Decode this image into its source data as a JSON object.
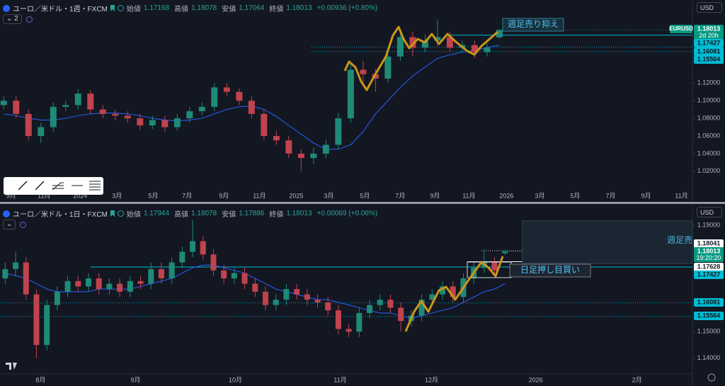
{
  "chart_data": [
    {
      "type": "candlestick",
      "title": "ユーロ／米ドル・1週・FXCM",
      "ohlc": [
        {
          "label": "始値",
          "value": 1.17168
        },
        {
          "label": "高値",
          "value": 1.18078
        },
        {
          "label": "安値",
          "value": 1.17064
        },
        {
          "label": "終値",
          "value": 1.18013
        }
      ],
      "change": "+0.00936 (+0.80%)",
      "indicator_count": 2,
      "currency": "USD",
      "symbol_tag": "EURUSD",
      "annotations": [
        "週足売り抑え"
      ],
      "up_color": "#1e8a78",
      "down_color": "#c0434d",
      "grid": false,
      "xlim": [
        -0.3,
        55.4
      ],
      "xticks": [
        {
          "value": 0.6,
          "label": "9月"
        },
        {
          "value": 3.26,
          "label": "11月"
        },
        {
          "value": 6.17,
          "label": "2024"
        },
        {
          "value": 9.14,
          "label": "3月"
        },
        {
          "value": 12.06,
          "label": "5月"
        },
        {
          "value": 14.8,
          "label": "7月"
        },
        {
          "value": 17.77,
          "label": "9月"
        },
        {
          "value": 20.63,
          "label": "11月"
        },
        {
          "value": 23.6,
          "label": "2025"
        },
        {
          "value": 26.23,
          "label": "3月"
        },
        {
          "value": 29.14,
          "label": "5月"
        },
        {
          "value": 32,
          "label": "7月"
        },
        {
          "value": 34.8,
          "label": "9月"
        },
        {
          "value": 37.54,
          "label": "11月"
        },
        {
          "value": 40.57,
          "label": "2026"
        },
        {
          "value": 43.26,
          "label": "3月"
        },
        {
          "value": 46.11,
          "label": "5月"
        },
        {
          "value": 48.97,
          "label": "7月"
        },
        {
          "value": 51.83,
          "label": "9月"
        },
        {
          "value": 54.69,
          "label": "11月"
        }
      ],
      "ylim": [
        0.999,
        1.198
      ],
      "yticks": [
        {
          "value": 1.12,
          "label": "1.12000"
        },
        {
          "value": 1.1,
          "label": "1.10000"
        },
        {
          "value": 1.08,
          "label": "1.08000"
        },
        {
          "value": 1.06,
          "label": "1.06000"
        },
        {
          "value": 1.04,
          "label": "1.04000"
        },
        {
          "value": 1.02,
          "label": "1.02000"
        }
      ],
      "candles": [
        [
          1.095,
          1.105,
          1.09,
          1.1
        ],
        [
          1.1,
          1.105,
          1.08,
          1.085
        ],
        [
          1.085,
          1.09,
          1.055,
          1.06
        ],
        [
          1.06,
          1.075,
          1.052,
          1.07
        ],
        [
          1.07,
          1.098,
          1.065,
          1.093
        ],
        [
          1.093,
          1.1,
          1.088,
          1.095
        ],
        [
          1.095,
          1.113,
          1.09,
          1.108
        ],
        [
          1.108,
          1.112,
          1.085,
          1.09
        ],
        [
          1.09,
          1.095,
          1.08,
          1.085
        ],
        [
          1.085,
          1.09,
          1.078,
          1.083
        ],
        [
          1.083,
          1.088,
          1.075,
          1.08
        ],
        [
          1.08,
          1.085,
          1.067,
          1.072
        ],
        [
          1.072,
          1.083,
          1.068,
          1.078
        ],
        [
          1.078,
          1.083,
          1.065,
          1.07
        ],
        [
          1.07,
          1.085,
          1.066,
          1.08
        ],
        [
          1.08,
          1.093,
          1.075,
          1.088
        ],
        [
          1.088,
          1.098,
          1.083,
          1.093
        ],
        [
          1.093,
          1.12,
          1.088,
          1.115
        ],
        [
          1.115,
          1.12,
          1.105,
          1.11
        ],
        [
          1.11,
          1.114,
          1.095,
          1.1
        ],
        [
          1.1,
          1.105,
          1.08,
          1.085
        ],
        [
          1.085,
          1.09,
          1.055,
          1.06
        ],
        [
          1.06,
          1.066,
          1.05,
          1.055
        ],
        [
          1.055,
          1.06,
          1.035,
          1.04
        ],
        [
          1.04,
          1.045,
          1.02,
          1.035
        ],
        [
          1.035,
          1.047,
          1.028,
          1.04
        ],
        [
          1.04,
          1.056,
          1.035,
          1.05
        ],
        [
          1.05,
          1.086,
          1.045,
          1.08
        ],
        [
          1.08,
          1.141,
          1.075,
          1.135
        ],
        [
          1.135,
          1.145,
          1.12,
          1.13
        ],
        [
          1.13,
          1.136,
          1.11,
          1.125
        ],
        [
          1.125,
          1.155,
          1.12,
          1.15
        ],
        [
          1.15,
          1.18,
          1.145,
          1.172
        ],
        [
          1.172,
          1.178,
          1.15,
          1.16
        ],
        [
          1.16,
          1.175,
          1.155,
          1.168
        ],
        [
          1.168,
          1.192,
          1.162,
          1.172
        ],
        [
          1.172,
          1.178,
          1.155,
          1.16
        ],
        [
          1.16,
          1.168,
          1.155,
          1.163
        ],
        [
          1.163,
          1.168,
          1.148,
          1.155
        ],
        [
          1.155,
          1.165,
          1.15,
          1.16
        ],
        [
          1.17168,
          1.18078,
          1.17064,
          1.18013
        ]
      ],
      "ma": {
        "color": "#2962ff",
        "values": [
          1.085,
          1.083,
          1.08,
          1.078,
          1.078,
          1.08,
          1.083,
          1.085,
          1.086,
          1.086,
          1.085,
          1.083,
          1.08,
          1.078,
          1.077,
          1.078,
          1.08,
          1.085,
          1.09,
          1.093,
          1.094,
          1.09,
          1.082,
          1.072,
          1.062,
          1.052,
          1.045,
          1.045,
          1.05,
          1.065,
          1.085,
          1.1,
          1.115,
          1.128,
          1.138,
          1.148,
          1.152,
          1.155,
          1.157,
          1.16,
          1.163
        ]
      },
      "price_tags": [
        {
          "value": 1.18013,
          "sub": "2d 20h",
          "color": "#089981",
          "text_color": "#ffffff",
          "style": "dotted"
        },
        {
          "value": 1.17427,
          "color": "#00bcd4",
          "text_color": "#131722",
          "style": "solid"
        },
        {
          "value": 1.16081,
          "color": "#00bcd4",
          "text_color": "#131722",
          "style": "dotted"
        },
        {
          "value": 1.15564,
          "color": "#00bcd4",
          "text_color": "#131722",
          "style": "dotted"
        }
      ]
    },
    {
      "type": "candlestick",
      "title": "ユーロ／米ドル・1日・FXCM",
      "ohlc": [
        {
          "label": "始値",
          "value": 1.17944
        },
        {
          "label": "高値",
          "value": 1.18078
        },
        {
          "label": "安値",
          "value": 1.17886
        },
        {
          "label": "終値",
          "value": 1.18013
        }
      ],
      "change": "+0.00069 (+0.06%)",
      "currency": "USD",
      "annotations": [
        "週足売",
        "日足押し目買い"
      ],
      "up_color": "#1e8a78",
      "down_color": "#c0434d",
      "grid": false,
      "xlim": [
        -0.5,
        65.8
      ],
      "xticks": [
        {
          "value": 3.4,
          "label": "8月"
        },
        {
          "value": 12.52,
          "label": "9月"
        },
        {
          "value": 22.11,
          "label": "10月"
        },
        {
          "value": 32.18,
          "label": "11月"
        },
        {
          "value": 40.95,
          "label": "12月"
        },
        {
          "value": 50.95,
          "label": "2026"
        },
        {
          "value": 60.68,
          "label": "2月"
        }
      ],
      "ylim": [
        1.1341,
        1.1969
      ],
      "yticks": [
        {
          "value": 1.19,
          "label": "1.19000"
        },
        {
          "value": 1.15,
          "label": "1.15000"
        },
        {
          "value": 1.14,
          "label": "1.14000"
        }
      ],
      "candles": [
        [
          1.17,
          1.176,
          1.168,
          1.1735
        ],
        [
          1.1735,
          1.18,
          1.171,
          1.176
        ],
        [
          1.176,
          1.178,
          1.162,
          1.164
        ],
        [
          1.164,
          1.166,
          1.14,
          1.145
        ],
        [
          1.145,
          1.162,
          1.143,
          1.16
        ],
        [
          1.16,
          1.167,
          1.158,
          1.165
        ],
        [
          1.165,
          1.171,
          1.163,
          1.169
        ],
        [
          1.169,
          1.171,
          1.165,
          1.167
        ],
        [
          1.167,
          1.172,
          1.165,
          1.17
        ],
        [
          1.17,
          1.172,
          1.164,
          1.166
        ],
        [
          1.166,
          1.17,
          1.164,
          1.168
        ],
        [
          1.168,
          1.17,
          1.163,
          1.165
        ],
        [
          1.165,
          1.171,
          1.163,
          1.169
        ],
        [
          1.169,
          1.171,
          1.166,
          1.168
        ],
        [
          1.168,
          1.176,
          1.166,
          1.1735
        ],
        [
          1.1735,
          1.176,
          1.168,
          1.17
        ],
        [
          1.17,
          1.178,
          1.168,
          1.176
        ],
        [
          1.176,
          1.182,
          1.174,
          1.18
        ],
        [
          1.18,
          1.192,
          1.178,
          1.184
        ],
        [
          1.184,
          1.186,
          1.177,
          1.179
        ],
        [
          1.179,
          1.181,
          1.171,
          1.173
        ],
        [
          1.173,
          1.175,
          1.168,
          1.17
        ],
        [
          1.17,
          1.174,
          1.168,
          1.172
        ],
        [
          1.172,
          1.174,
          1.166,
          1.168
        ],
        [
          1.168,
          1.17,
          1.163,
          1.165
        ],
        [
          1.165,
          1.167,
          1.158,
          1.16
        ],
        [
          1.16,
          1.164,
          1.158,
          1.162
        ],
        [
          1.162,
          1.168,
          1.16,
          1.166
        ],
        [
          1.166,
          1.168,
          1.162,
          1.164
        ],
        [
          1.164,
          1.166,
          1.16,
          1.162
        ],
        [
          1.162,
          1.164,
          1.159,
          1.161
        ],
        [
          1.161,
          1.163,
          1.156,
          1.158
        ],
        [
          1.158,
          1.16,
          1.149,
          1.151
        ],
        [
          1.151,
          1.153,
          1.148,
          1.15
        ],
        [
          1.15,
          1.159,
          1.148,
          1.157
        ],
        [
          1.157,
          1.162,
          1.155,
          1.16
        ],
        [
          1.16,
          1.164,
          1.158,
          1.162
        ],
        [
          1.162,
          1.164,
          1.157,
          1.159
        ],
        [
          1.159,
          1.161,
          1.15,
          1.154
        ],
        [
          1.154,
          1.158,
          1.152,
          1.156
        ],
        [
          1.156,
          1.164,
          1.154,
          1.162
        ],
        [
          1.162,
          1.166,
          1.16,
          1.164
        ],
        [
          1.164,
          1.169,
          1.162,
          1.167
        ],
        [
          1.167,
          1.169,
          1.161,
          1.163
        ],
        [
          1.163,
          1.172,
          1.161,
          1.17
        ],
        [
          1.17,
          1.176,
          1.168,
          1.174
        ],
        [
          1.174,
          1.181,
          1.172,
          1.176
        ],
        [
          1.176,
          1.178,
          1.171,
          1.173
        ],
        [
          1.17944,
          1.18078,
          1.17886,
          1.18013
        ]
      ],
      "ma": {
        "color": "#2962ff",
        "values": [
          1.172,
          1.171,
          1.17,
          1.168,
          1.166,
          1.165,
          1.165,
          1.165,
          1.165,
          1.166,
          1.166,
          1.166,
          1.166,
          1.167,
          1.168,
          1.169,
          1.17,
          1.172,
          1.174,
          1.175,
          1.175,
          1.174,
          1.173,
          1.172,
          1.17,
          1.168,
          1.166,
          1.165,
          1.164,
          1.163,
          1.162,
          1.162,
          1.161,
          1.16,
          1.159,
          1.158,
          1.157,
          1.157,
          1.156,
          1.155,
          1.156,
          1.157,
          1.158,
          1.159,
          1.161,
          1.163,
          1.165,
          1.166,
          1.168
        ]
      },
      "price_tags": [
        {
          "value": 1.18041,
          "color": "#ffffff",
          "text_color": "#131722",
          "style": "dotted"
        },
        {
          "value": 1.18013,
          "sub": "19:20:20",
          "color": "#089981",
          "text_color": "#ffffff",
          "style": "dotted"
        },
        {
          "value": 1.17628,
          "color": "#ffffff",
          "text_color": "#131722",
          "style": "solid"
        },
        {
          "value": 1.17427,
          "color": "#00bcd4",
          "text_color": "#131722",
          "style": "solid"
        },
        {
          "value": 1.16081,
          "color": "#00bcd4",
          "text_color": "#131722",
          "style": "dotted"
        },
        {
          "value": 1.15564,
          "color": "#00bcd4",
          "text_color": "#131722",
          "style": "dotted"
        }
      ]
    }
  ]
}
